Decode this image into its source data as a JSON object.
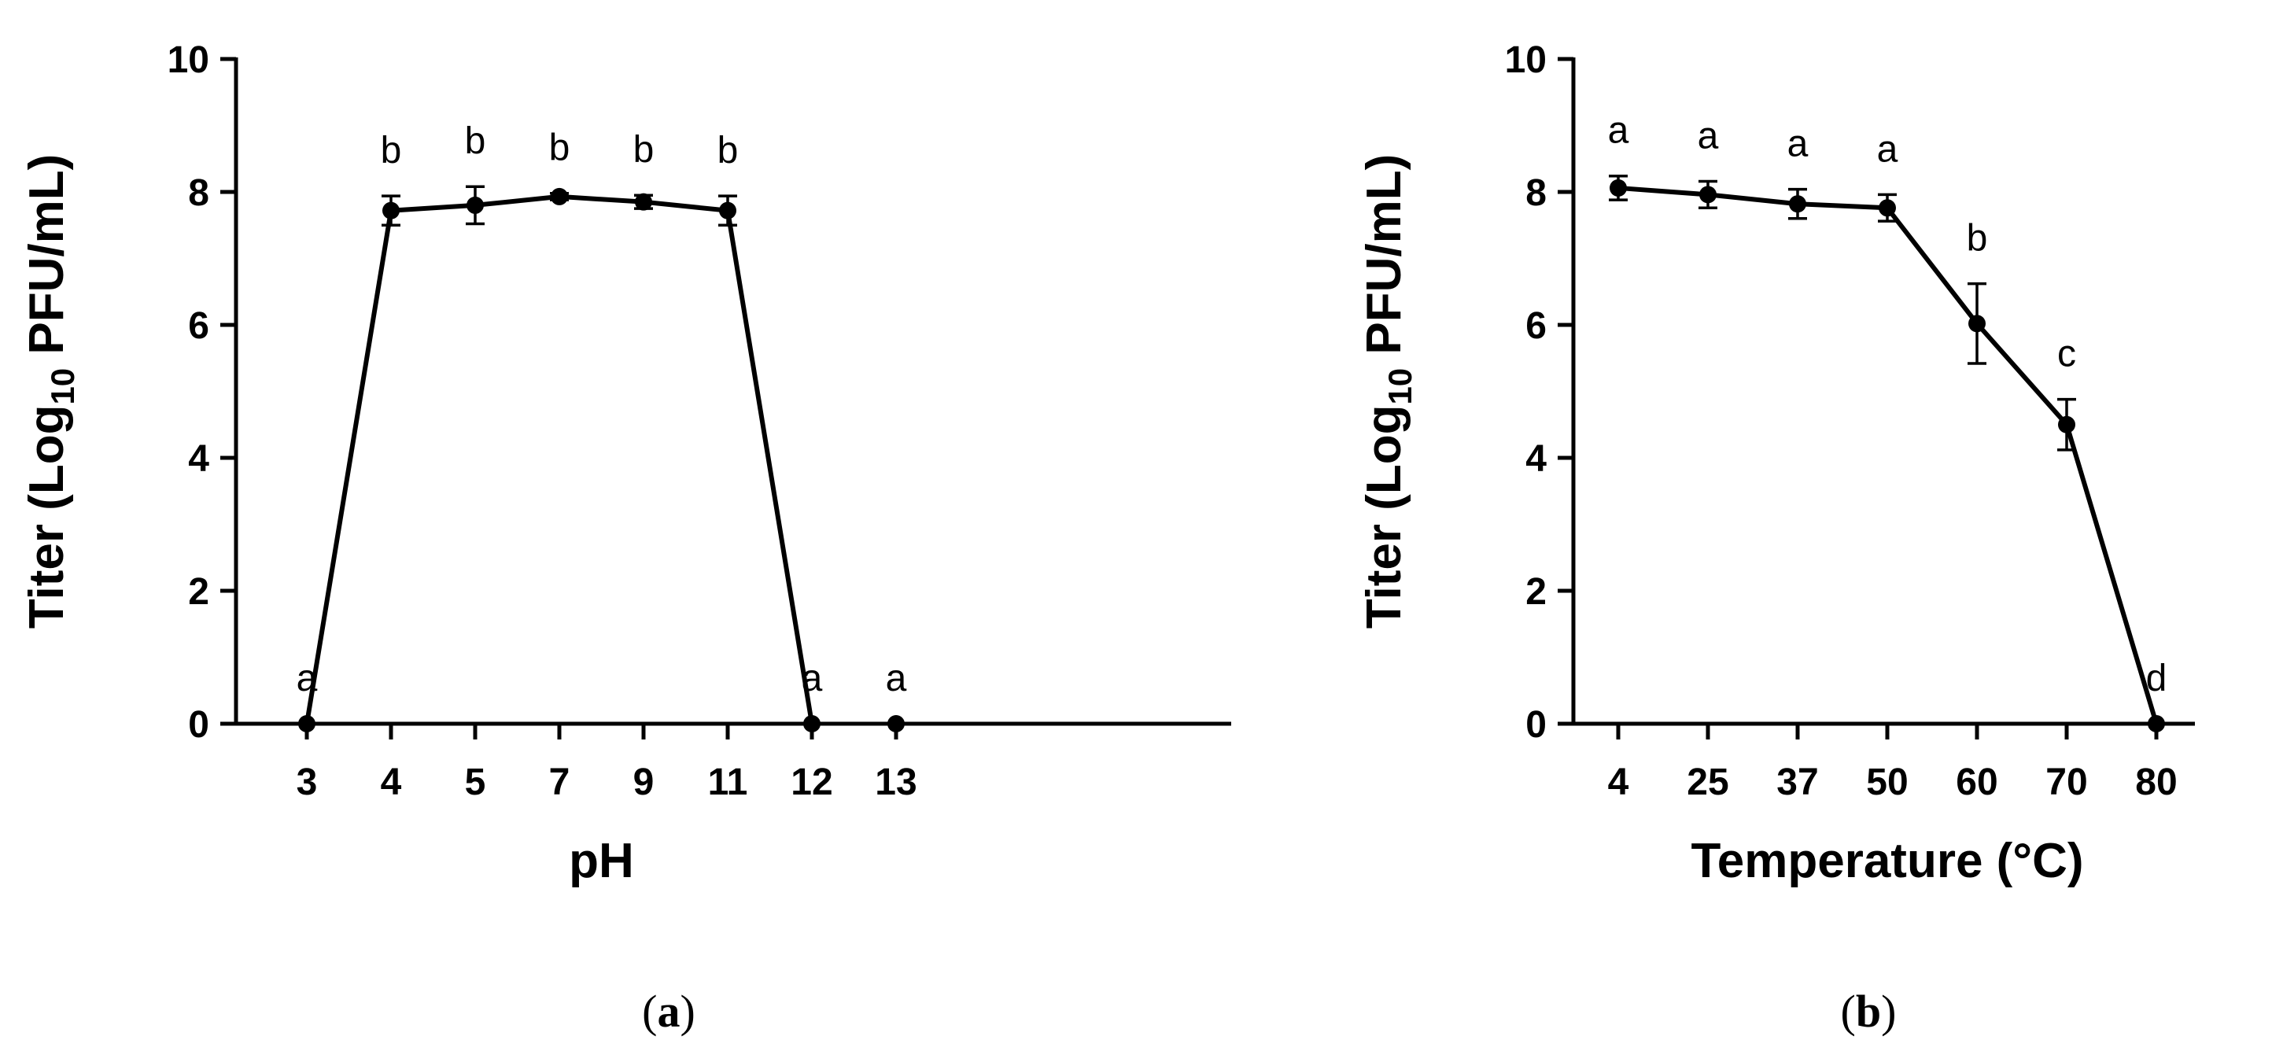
{
  "chart_data": [
    {
      "type": "line",
      "panel": "a",
      "xlabel": "pH",
      "ylabel_main": "Titer (Log",
      "ylabel_sub": "10",
      "ylabel_rest": " PFU/mL)",
      "ylim": [
        0,
        10
      ],
      "yticks": [
        0,
        2,
        4,
        6,
        8,
        10
      ],
      "categories": [
        "3",
        "4",
        "5",
        "7",
        "9",
        "11",
        "12",
        "13"
      ],
      "values": [
        0,
        7.72,
        7.8,
        7.93,
        7.85,
        7.72,
        0,
        0
      ],
      "errors": [
        0,
        0.22,
        0.28,
        0.05,
        0.1,
        0.22,
        0,
        0
      ],
      "labels": [
        "a",
        "b",
        "b",
        "b",
        "b",
        "b",
        "a",
        "a"
      ],
      "connected_points": 7,
      "grid": false,
      "marker_color": "#000000"
    },
    {
      "type": "line",
      "panel": "b",
      "xlabel": "Temperature (°C)",
      "ylabel_main": "Titer (Log",
      "ylabel_sub": "10",
      "ylabel_rest": " PFU/mL)",
      "ylim": [
        0,
        10
      ],
      "yticks": [
        0,
        2,
        4,
        6,
        8,
        10
      ],
      "categories": [
        "4",
        "25",
        "37",
        "50",
        "60",
        "70",
        "80"
      ],
      "values": [
        8.06,
        7.96,
        7.82,
        7.76,
        6.02,
        4.5,
        0
      ],
      "errors": [
        0.18,
        0.2,
        0.22,
        0.2,
        0.6,
        0.38,
        0
      ],
      "labels": [
        "a",
        "a",
        "a",
        "a",
        "b",
        "c",
        "d"
      ],
      "connected_points": 7,
      "grid": false,
      "marker_color": "#000000"
    }
  ],
  "panel_labels": [
    "a",
    "b"
  ]
}
